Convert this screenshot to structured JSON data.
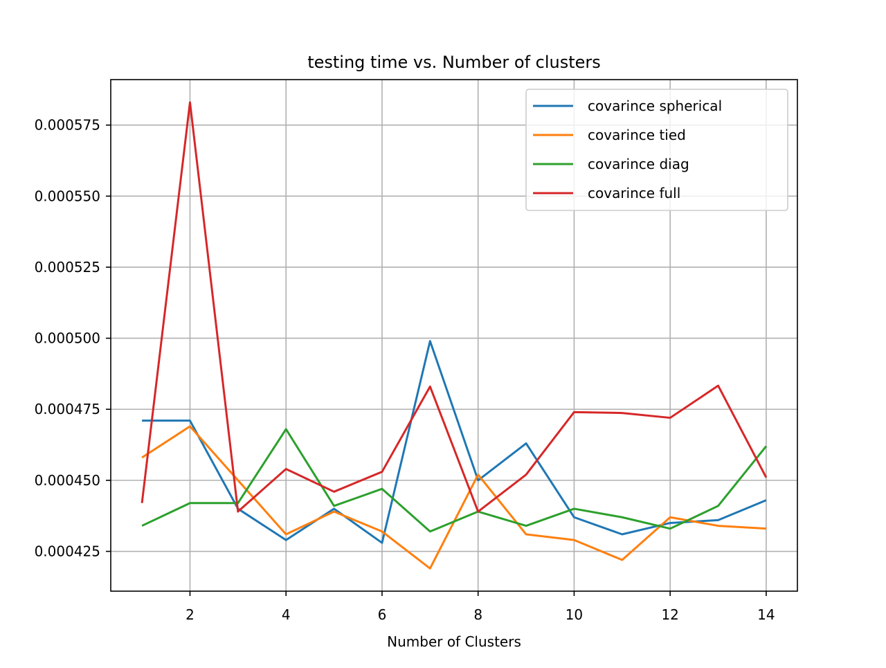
{
  "chart_data": {
    "type": "line",
    "title": "testing time  vs. Number of clusters",
    "xlabel": "Number of Clusters",
    "ylabel": "",
    "x": [
      1,
      2,
      3,
      4,
      5,
      6,
      7,
      8,
      9,
      10,
      11,
      12,
      13,
      14
    ],
    "xlim": [
      0.35,
      14.65
    ],
    "ylim": [
      0.000411,
      0.000591
    ],
    "xticks": [
      2,
      4,
      6,
      8,
      10,
      12,
      14
    ],
    "xtick_labels": [
      "2",
      "4",
      "6",
      "8",
      "10",
      "12",
      "14"
    ],
    "yticks": [
      0.000425,
      0.00045,
      0.000475,
      0.0005,
      0.000525,
      0.00055,
      0.000575
    ],
    "ytick_labels": [
      "0.000425",
      "0.000450",
      "0.000475",
      "0.000500",
      "0.000525",
      "0.000550",
      "0.000575"
    ],
    "grid": true,
    "legend_position": "top-right",
    "series": [
      {
        "name": "covarince  spherical",
        "color": "#1f77b4",
        "values": [
          0.000471,
          0.000471,
          0.00044,
          0.000429,
          0.00044,
          0.000428,
          0.000499,
          0.00045,
          0.000463,
          0.000437,
          0.000431,
          0.000435,
          0.000436,
          0.000443
        ]
      },
      {
        "name": "covarince  tied",
        "color": "#ff7f0e",
        "values": [
          0.000458,
          0.000469,
          0.00045,
          0.000431,
          0.000439,
          0.000432,
          0.000419,
          0.000452,
          0.000431,
          0.000429,
          0.000422,
          0.000437,
          0.000434,
          0.000433
        ]
      },
      {
        "name": "covarince  diag",
        "color": "#2ca02c",
        "values": [
          0.000434,
          0.000442,
          0.000442,
          0.000468,
          0.000441,
          0.000447,
          0.000432,
          0.000439,
          0.000434,
          0.00044,
          0.000437,
          0.000433,
          0.000441,
          0.000462
        ]
      },
      {
        "name": "covarince  full",
        "color": "#d62728",
        "values": [
          0.000442,
          0.000583,
          0.000439,
          0.000454,
          0.000446,
          0.000453,
          0.000483,
          0.000439,
          0.000452,
          0.000474,
          0.0004737,
          0.000472,
          0.0004833,
          0.000451
        ]
      }
    ]
  }
}
